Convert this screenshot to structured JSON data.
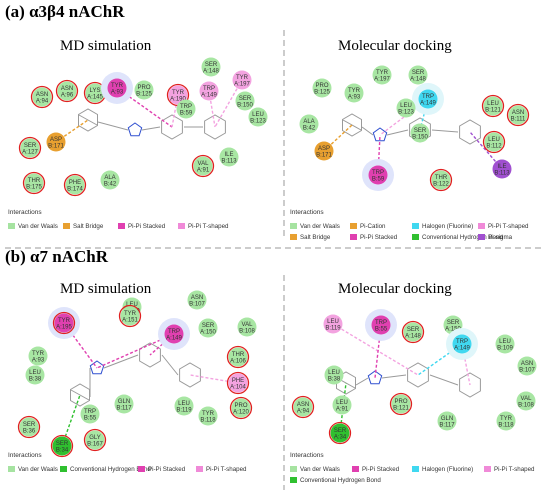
{
  "sections": [
    {
      "title": "(a) α3β4 nAChR",
      "panels": [
        {
          "title": "MD simulation",
          "interactions_label": "Interactions",
          "legend": [
            {
              "label": "Van der Waals",
              "color": "#a6e3a1"
            },
            {
              "label": "Salt Bridge",
              "color": "#e8a030"
            },
            {
              "label": "Pi-Pi Stacked",
              "color": "#e040b0"
            },
            {
              "label": "Pi-Pi T-shaped",
              "color": "#f08ad8"
            }
          ],
          "residues": [
            {
              "l1": "ASN",
              "l2": "A:94",
              "type": "vdw",
              "ring": true
            },
            {
              "l1": "ASN",
              "l2": "A:96",
              "type": "vdw",
              "ring": true
            },
            {
              "l1": "LYS",
              "l2": "A:145",
              "type": "vdw",
              "ring": true
            },
            {
              "l1": "TYR",
              "l2": "A:93",
              "type": "pipi",
              "ring": false
            },
            {
              "l1": "PRO",
              "l2": "B:125",
              "type": "vdw",
              "ring": false
            },
            {
              "l1": "TYR",
              "l2": "A:190",
              "type": "pit",
              "ring": true
            },
            {
              "l1": "SER",
              "l2": "A:148",
              "type": "vdw",
              "ring": false
            },
            {
              "l1": "TRP",
              "l2": "A:149",
              "type": "pit",
              "ring": false
            },
            {
              "l1": "TYR",
              "l2": "A:197",
              "type": "pit",
              "ring": false
            },
            {
              "l1": "TRP",
              "l2": "B:59",
              "type": "vdw",
              "ring": false
            },
            {
              "l1": "SER",
              "l2": "B:150",
              "type": "vdw",
              "ring": false
            },
            {
              "l1": "LEU",
              "l2": "B:123",
              "type": "vdw",
              "ring": false
            },
            {
              "l1": "SER",
              "l2": "A:127",
              "type": "vdw",
              "ring": true
            },
            {
              "l1": "ASP",
              "l2": "B:171",
              "type": "salt",
              "ring": false
            },
            {
              "l1": "ILE",
              "l2": "B:113",
              "type": "vdw",
              "ring": false
            },
            {
              "l1": "VAL",
              "l2": "A:91",
              "type": "vdw",
              "ring": true
            },
            {
              "l1": "ALA",
              "l2": "B:42",
              "type": "vdw",
              "ring": false
            },
            {
              "l1": "THR",
              "l2": "B:175",
              "type": "vdw",
              "ring": true
            },
            {
              "l1": "PHE",
              "l2": "B:174",
              "type": "vdw",
              "ring": true
            }
          ]
        },
        {
          "title": "Molecular docking",
          "interactions_label": "Interactions",
          "legend": [
            {
              "label": "Van der Waals",
              "color": "#a6e3a1"
            },
            {
              "label": "Pi-Cation",
              "color": "#e8a030"
            },
            {
              "label": "Halogen (Fluorine)",
              "color": "#40d8f0"
            },
            {
              "label": "Pi-Pi T-shaped",
              "color": "#f08ad8"
            },
            {
              "label": "Salt Bridge",
              "color": "#e8a030"
            },
            {
              "label": "Pi-Pi Stacked",
              "color": "#e040b0"
            },
            {
              "label": "Conventional Hydrogen Bond",
              "color": "#30c030"
            },
            {
              "label": "Pi-sigma",
              "color": "#a050d0"
            }
          ],
          "residues": [
            {
              "l1": "PRO",
              "l2": "B:125",
              "type": "vdw",
              "ring": false
            },
            {
              "l1": "TYR",
              "l2": "A:93",
              "type": "vdw",
              "ring": false
            },
            {
              "l1": "TYR",
              "l2": "A:197",
              "type": "vdw",
              "ring": false
            },
            {
              "l1": "SER",
              "l2": "A:148",
              "type": "vdw",
              "ring": false
            },
            {
              "l1": "TRP",
              "l2": "A:149",
              "type": "halogen",
              "ring": false
            },
            {
              "l1": "LEU",
              "l2": "B:123",
              "type": "vdw",
              "ring": false
            },
            {
              "l1": "SER",
              "l2": "B:150",
              "type": "vdw",
              "ring": false
            },
            {
              "l1": "LEU",
              "l2": "B:121",
              "type": "vdw",
              "ring": true
            },
            {
              "l1": "ASN",
              "l2": "B:111",
              "type": "vdw",
              "ring": true
            },
            {
              "l1": "LEU",
              "l2": "B:112",
              "type": "vdw",
              "ring": true
            },
            {
              "l1": "ALA",
              "l2": "B:42",
              "type": "vdw",
              "ring": false
            },
            {
              "l1": "ASP",
              "l2": "B:171",
              "type": "salt",
              "ring": false
            },
            {
              "l1": "TRP",
              "l2": "B:59",
              "type": "pipi",
              "ring": false
            },
            {
              "l1": "THR",
              "l2": "B:122",
              "type": "vdw",
              "ring": true
            },
            {
              "l1": "ILE",
              "l2": "B:113",
              "type": "sigma",
              "ring": false
            }
          ]
        }
      ]
    },
    {
      "title": "(b) α7 nAChR",
      "panels": [
        {
          "title": "MD simulation",
          "interactions_label": "Interactions",
          "legend": [
            {
              "label": "Van der Waals",
              "color": "#a6e3a1"
            },
            {
              "label": "Conventional Hydrogen Bond",
              "color": "#30c030"
            },
            {
              "label": "Pi-Pi Stacked",
              "color": "#e040b0"
            },
            {
              "label": "Pi-Pi T-shaped",
              "color": "#f08ad8"
            }
          ],
          "residues": [
            {
              "l1": "LEU",
              "l2": "B:109",
              "type": "vdw",
              "ring": false
            },
            {
              "l1": "ASN",
              "l2": "B:107",
              "type": "vdw",
              "ring": false
            },
            {
              "l1": "TYR",
              "l2": "A:195",
              "type": "pipi",
              "ring": true
            },
            {
              "l1": "TYR",
              "l2": "A:151",
              "type": "vdw",
              "ring": true
            },
            {
              "l1": "TRP",
              "l2": "A:149",
              "type": "pipi",
              "ring": false
            },
            {
              "l1": "SER",
              "l2": "A:150",
              "type": "vdw",
              "ring": false
            },
            {
              "l1": "VAL",
              "l2": "B:108",
              "type": "vdw",
              "ring": false
            },
            {
              "l1": "TYR",
              "l2": "A:93",
              "type": "vdw",
              "ring": false
            },
            {
              "l1": "THR",
              "l2": "A:106",
              "type": "vdw",
              "ring": true
            },
            {
              "l1": "LEU",
              "l2": "B:38",
              "type": "vdw",
              "ring": false
            },
            {
              "l1": "PHE",
              "l2": "A:104",
              "type": "pit",
              "ring": true
            },
            {
              "l1": "GLN",
              "l2": "B:117",
              "type": "vdw",
              "ring": false
            },
            {
              "l1": "LEU",
              "l2": "B:119",
              "type": "vdw",
              "ring": false
            },
            {
              "l1": "PRO",
              "l2": "A:120",
              "type": "vdw",
              "ring": true
            },
            {
              "l1": "TRP",
              "l2": "B:55",
              "type": "vdw",
              "ring": false
            },
            {
              "l1": "TYR",
              "l2": "B:118",
              "type": "vdw",
              "ring": false
            },
            {
              "l1": "SER",
              "l2": "B:36",
              "type": "vdw",
              "ring": true
            },
            {
              "l1": "GLY",
              "l2": "B:167",
              "type": "vdw",
              "ring": true
            },
            {
              "l1": "SER",
              "l2": "B:34",
              "type": "hbond",
              "ring": true
            }
          ]
        },
        {
          "title": "Molecular docking",
          "interactions_label": "Interactions",
          "legend": [
            {
              "label": "Van der Waals",
              "color": "#a6e3a1"
            },
            {
              "label": "Pi-Pi Stacked",
              "color": "#e040b0"
            },
            {
              "label": "Halogen (Fluorine)",
              "color": "#40d8f0"
            },
            {
              "label": "Pi-Pi T-shaped",
              "color": "#f08ad8"
            },
            {
              "label": "Conventional Hydrogen Bond",
              "color": "#30c030"
            }
          ],
          "residues": [
            {
              "l1": "LEU",
              "l2": "B:119",
              "type": "pit",
              "ring": false
            },
            {
              "l1": "TRP",
              "l2": "B:55",
              "type": "pipi",
              "ring": false
            },
            {
              "l1": "SER",
              "l2": "A:148",
              "type": "vdw",
              "ring": true
            },
            {
              "l1": "SER",
              "l2": "A:150",
              "type": "vdw",
              "ring": false
            },
            {
              "l1": "TRP",
              "l2": "A:149",
              "type": "halogen",
              "ring": false
            },
            {
              "l1": "LEU",
              "l2": "B:109",
              "type": "vdw",
              "ring": false
            },
            {
              "l1": "LEU",
              "l2": "B:38",
              "type": "vdw",
              "ring": false
            },
            {
              "l1": "ASN",
              "l2": "B:107",
              "type": "vdw",
              "ring": false
            },
            {
              "l1": "ASN",
              "l2": "A:94",
              "type": "vdw",
              "ring": true
            },
            {
              "l1": "LEU",
              "l2": "A:91",
              "type": "vdw",
              "ring": false
            },
            {
              "l1": "PRO",
              "l2": "B:121",
              "type": "vdw",
              "ring": true
            },
            {
              "l1": "VAL",
              "l2": "B:108",
              "type": "vdw",
              "ring": false
            },
            {
              "l1": "TYR",
              "l2": "B:118",
              "type": "vdw",
              "ring": false
            },
            {
              "l1": "GLN",
              "l2": "B:117",
              "type": "vdw",
              "ring": false
            },
            {
              "l1": "SER",
              "l2": "A:34",
              "type": "hbond",
              "ring": true
            }
          ]
        }
      ]
    }
  ],
  "type_colors": {
    "vdw": "#a8e6a3",
    "salt": "#e8a030",
    "pipi": "#e040b0",
    "pit": "#f3a3e0",
    "halogen": "#40d8f0",
    "hbond": "#2fc02f",
    "sigma": "#a050d0"
  },
  "ring_color": "#e02020"
}
